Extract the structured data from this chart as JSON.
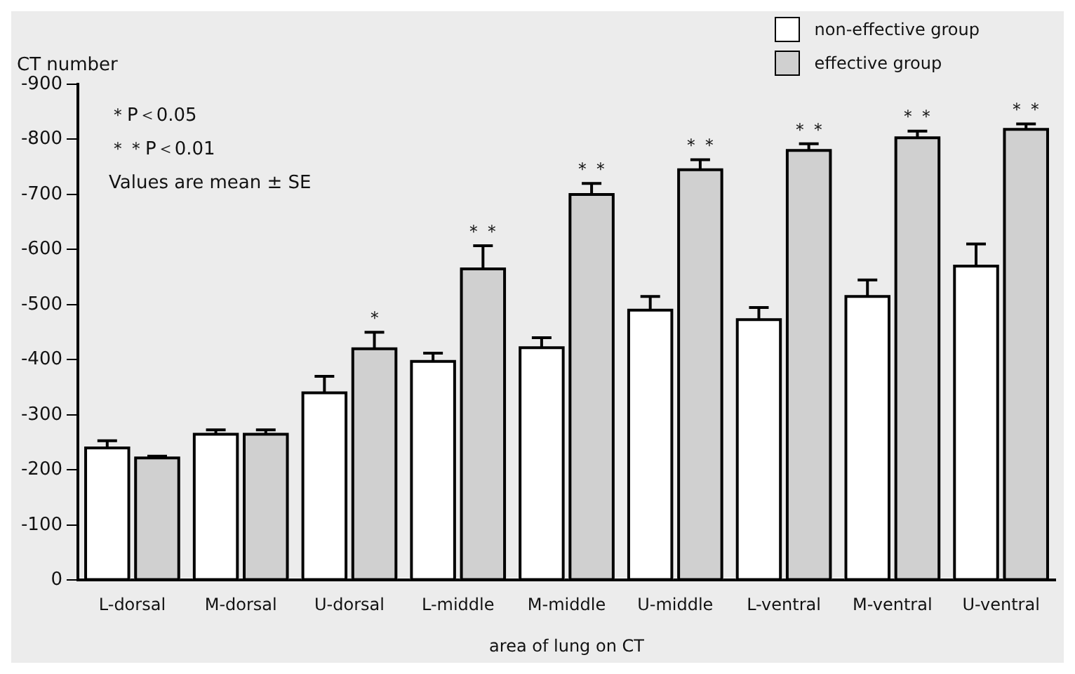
{
  "chart_data": {
    "type": "bar",
    "xlabel": "area of lung on CT",
    "ylabel": "CT number",
    "categories": [
      "L-dorsal",
      "M-dorsal",
      "U-dorsal",
      "L-middle",
      "M-middle",
      "U-middle",
      "L-ventral",
      "M-ventral",
      "U-ventral"
    ],
    "series": [
      {
        "name": "non-effective group",
        "color": "#ffffff",
        "values": [
          -240,
          -265,
          -340,
          -397,
          -422,
          -490,
          -473,
          -515,
          -570
        ],
        "errors": [
          [
            -253,
            -240
          ],
          [
            -273,
            -265
          ],
          [
            -370,
            -340
          ],
          [
            -412,
            -397
          ],
          [
            -440,
            -422
          ],
          [
            -515,
            -490
          ],
          [
            -495,
            -473
          ],
          [
            -545,
            -515
          ],
          [
            -610,
            -570
          ]
        ]
      },
      {
        "name": "effective group",
        "color": "#d0d0d0",
        "values": [
          -222,
          -265,
          -420,
          -565,
          -700,
          -745,
          -780,
          -803,
          -818
        ],
        "errors": [
          [
            -225,
            -222
          ],
          [
            -273,
            -265
          ],
          [
            -450,
            -420
          ],
          [
            -607,
            -565
          ],
          [
            -720,
            -700
          ],
          [
            -763,
            -745
          ],
          [
            -792,
            -780
          ],
          [
            -815,
            -803
          ],
          [
            -828,
            -818
          ]
        ]
      }
    ],
    "ylim": [
      0,
      -900
    ],
    "yticks": [
      0,
      -100,
      -200,
      -300,
      -400,
      -500,
      -600,
      -700,
      -800,
      -900
    ],
    "grid": false,
    "legend": "top right",
    "annotations": [
      "＊P＜0.05",
      "＊＊P＜0.01",
      "Values are mean ± SE",
      "＊",
      "＊＊",
      "＊＊",
      "＊＊",
      "＊＊",
      "＊＊",
      "＊＊"
    ]
  }
}
